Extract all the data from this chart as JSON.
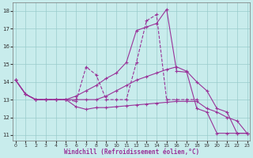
{
  "xlabel": "Windchill (Refroidissement éolien,°C)",
  "background_color": "#c8ecec",
  "line_color": "#993399",
  "grid_color": "#99cccc",
  "x_ticks": [
    0,
    1,
    2,
    3,
    4,
    5,
    6,
    7,
    8,
    9,
    10,
    11,
    12,
    13,
    14,
    15,
    16,
    17,
    18,
    19,
    20,
    21,
    22,
    23
  ],
  "y_ticks": [
    11,
    12,
    13,
    14,
    15,
    16,
    17,
    18
  ],
  "xlim": [
    -0.3,
    23.3
  ],
  "ylim": [
    10.7,
    18.5
  ],
  "line_dashed_x": [
    0,
    1,
    2,
    3,
    4,
    5,
    6,
    7,
    8,
    9,
    10,
    11,
    12,
    13,
    14,
    15,
    16,
    17,
    18
  ],
  "line_dashed_y": [
    14.1,
    13.3,
    13.0,
    13.0,
    13.0,
    13.0,
    12.9,
    14.85,
    14.4,
    13.0,
    13.0,
    13.0,
    15.1,
    17.45,
    17.8,
    13.0,
    13.0,
    13.0,
    13.0
  ],
  "line_upper_x": [
    0,
    1,
    2,
    3,
    4,
    5,
    6,
    7,
    8,
    9,
    10,
    11,
    12,
    13,
    14,
    15,
    16,
    17,
    18,
    19,
    20,
    21,
    22,
    23
  ],
  "line_upper_y": [
    14.1,
    13.3,
    13.0,
    13.0,
    13.0,
    13.0,
    13.2,
    13.5,
    13.8,
    14.2,
    14.5,
    15.1,
    16.9,
    17.1,
    17.3,
    18.1,
    14.6,
    14.55,
    12.5,
    12.3,
    11.1,
    11.1,
    11.1,
    11.1
  ],
  "line_mid_x": [
    0,
    1,
    2,
    3,
    4,
    5,
    6,
    7,
    8,
    9,
    10,
    11,
    12,
    13,
    14,
    15,
    16,
    17,
    18,
    19,
    20,
    21,
    22,
    23
  ],
  "line_mid_y": [
    14.1,
    13.3,
    13.0,
    13.0,
    13.0,
    13.0,
    13.0,
    13.0,
    13.0,
    13.2,
    13.5,
    13.8,
    14.1,
    14.3,
    14.5,
    14.7,
    14.85,
    14.6,
    14.0,
    13.5,
    12.5,
    12.3,
    11.1,
    11.1
  ],
  "line_low_x": [
    0,
    1,
    2,
    3,
    4,
    5,
    6,
    7,
    8,
    9,
    10,
    11,
    12,
    13,
    14,
    15,
    16,
    17,
    18,
    19,
    20,
    21,
    22,
    23
  ],
  "line_low_y": [
    14.1,
    13.3,
    13.0,
    13.0,
    13.0,
    13.0,
    12.6,
    12.45,
    12.55,
    12.55,
    12.6,
    12.65,
    12.7,
    12.75,
    12.8,
    12.85,
    12.9,
    12.9,
    12.9,
    12.5,
    12.3,
    12.0,
    11.8,
    11.1
  ]
}
